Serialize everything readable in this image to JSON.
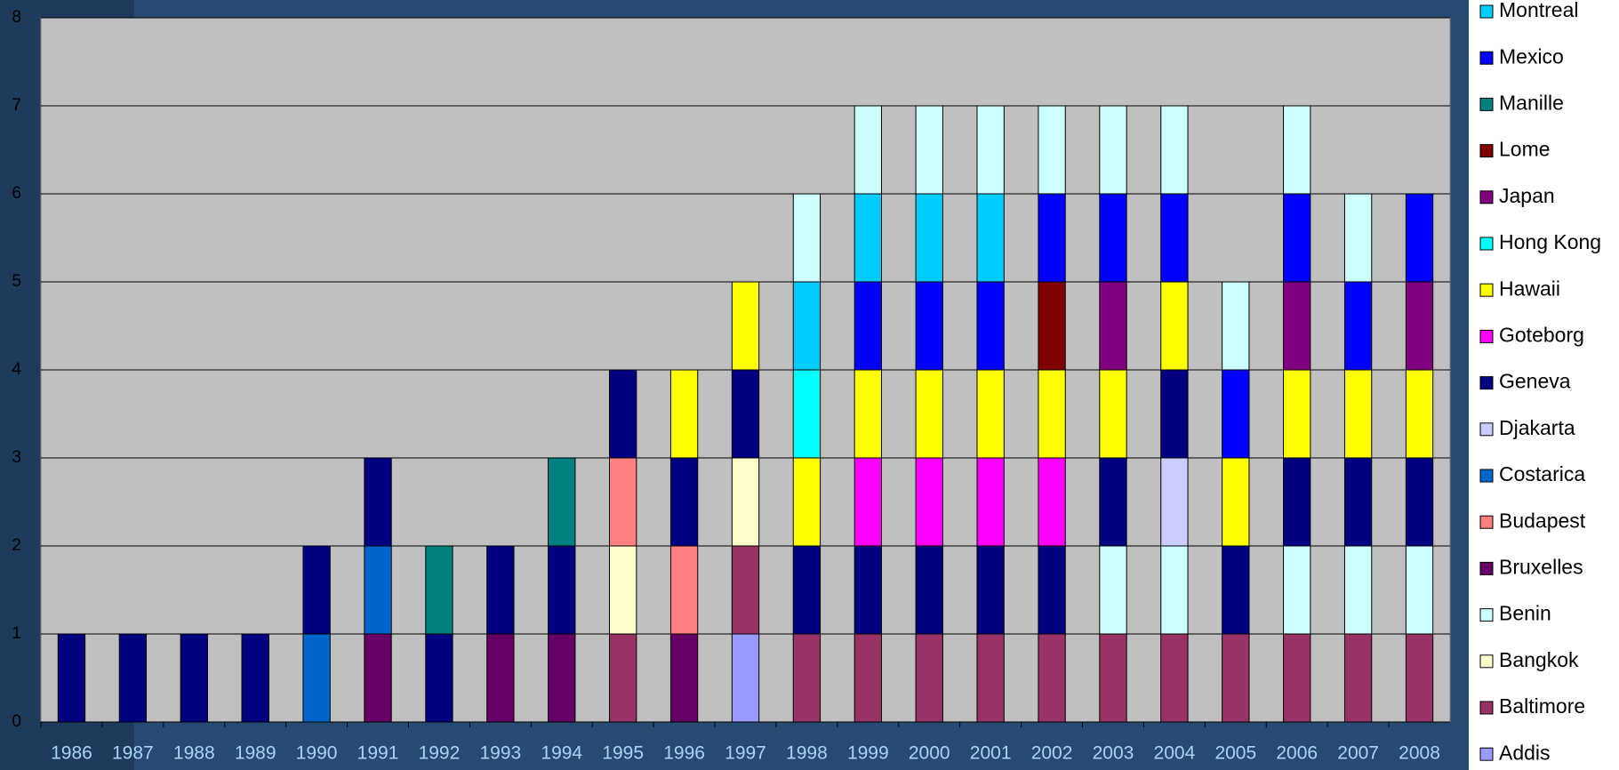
{
  "chart_data": {
    "type": "stacked_bar",
    "categories": [
      "1986",
      "1987",
      "1988",
      "1989",
      "1990",
      "1991",
      "1992",
      "1993",
      "1994",
      "1995",
      "1996",
      "1997",
      "1998",
      "1999",
      "2000",
      "2001",
      "2002",
      "2003",
      "2004",
      "2005",
      "2006",
      "2007",
      "2008"
    ],
    "series": [
      {
        "name": "Addis",
        "color": "#9999ff",
        "values": [
          0,
          0,
          0,
          0,
          0,
          0,
          0,
          0,
          0,
          0,
          0,
          1,
          0,
          0,
          0,
          0,
          0,
          0,
          0,
          0,
          0,
          0,
          0
        ]
      },
      {
        "name": "Baltimore",
        "color": "#993366",
        "values": [
          0,
          0,
          0,
          0,
          0,
          0,
          0,
          0,
          0,
          1,
          0,
          1,
          1,
          1,
          1,
          1,
          1,
          1,
          1,
          1,
          1,
          1,
          1
        ]
      },
      {
        "name": "Bangkok",
        "color": "#ffffcc",
        "values": [
          0,
          0,
          0,
          0,
          0,
          0,
          0,
          0,
          0,
          1,
          0,
          1,
          0,
          0,
          0,
          0,
          0,
          0,
          0,
          0,
          0,
          0,
          0
        ]
      },
      {
        "name": "Benin",
        "color": "#ccffff",
        "values": [
          0,
          0,
          0,
          0,
          0,
          0,
          0,
          0,
          0,
          0,
          0,
          0,
          0,
          0,
          0,
          0,
          0,
          1,
          1,
          0,
          1,
          1,
          1
        ]
      },
      {
        "name": "Bruxelles",
        "color": "#660066",
        "values": [
          0,
          0,
          0,
          0,
          0,
          1,
          0,
          1,
          1,
          0,
          1,
          0,
          0,
          0,
          0,
          0,
          0,
          0,
          0,
          0,
          0,
          0,
          0
        ]
      },
      {
        "name": "Budapest",
        "color": "#ff8080",
        "values": [
          0,
          0,
          0,
          0,
          0,
          0,
          0,
          0,
          0,
          1,
          1,
          0,
          0,
          0,
          0,
          0,
          0,
          0,
          0,
          0,
          0,
          0,
          0
        ]
      },
      {
        "name": "Costarica",
        "color": "#0066cc",
        "values": [
          0,
          0,
          0,
          0,
          1,
          1,
          0,
          0,
          0,
          0,
          0,
          0,
          0,
          0,
          0,
          0,
          0,
          0,
          0,
          0,
          0,
          0,
          0
        ]
      },
      {
        "name": "Djakarta",
        "color": "#ccccff",
        "values": [
          0,
          0,
          0,
          0,
          0,
          0,
          0,
          0,
          0,
          0,
          0,
          0,
          0,
          0,
          0,
          0,
          0,
          0,
          1,
          0,
          0,
          0,
          0
        ]
      },
      {
        "name": "Geneva",
        "color": "#000080",
        "values": [
          1,
          1,
          1,
          1,
          1,
          1,
          1,
          1,
          1,
          1,
          1,
          1,
          1,
          1,
          1,
          1,
          1,
          1,
          1,
          1,
          1,
          1,
          1
        ]
      },
      {
        "name": "Goteborg",
        "color": "#ff00ff",
        "values": [
          0,
          0,
          0,
          0,
          0,
          0,
          0,
          0,
          0,
          0,
          0,
          0,
          0,
          1,
          1,
          1,
          1,
          0,
          0,
          0,
          0,
          0,
          0
        ]
      },
      {
        "name": "Hawaii",
        "color": "#ffff00",
        "values": [
          0,
          0,
          0,
          0,
          0,
          0,
          0,
          0,
          0,
          0,
          1,
          1,
          1,
          1,
          1,
          1,
          1,
          1,
          1,
          1,
          1,
          1,
          1
        ]
      },
      {
        "name": "Hong Kong",
        "color": "#00ffff",
        "values": [
          0,
          0,
          0,
          0,
          0,
          0,
          0,
          0,
          0,
          0,
          0,
          0,
          1,
          0,
          0,
          0,
          0,
          0,
          0,
          0,
          0,
          0,
          0
        ]
      },
      {
        "name": "Japan",
        "color": "#800080",
        "values": [
          0,
          0,
          0,
          0,
          0,
          0,
          0,
          0,
          0,
          0,
          0,
          0,
          0,
          0,
          0,
          0,
          0,
          1,
          0,
          0,
          1,
          0,
          1
        ]
      },
      {
        "name": "Lome",
        "color": "#800000",
        "values": [
          0,
          0,
          0,
          0,
          0,
          0,
          0,
          0,
          0,
          0,
          0,
          0,
          0,
          0,
          0,
          0,
          1,
          0,
          0,
          0,
          0,
          0,
          0
        ]
      },
      {
        "name": "Manille",
        "color": "#008080",
        "values": [
          0,
          0,
          0,
          0,
          0,
          0,
          1,
          0,
          1,
          0,
          0,
          0,
          0,
          0,
          0,
          0,
          0,
          0,
          0,
          0,
          0,
          0,
          0
        ]
      },
      {
        "name": "Mexico",
        "color": "#0000ff",
        "values": [
          0,
          0,
          0,
          0,
          0,
          0,
          0,
          0,
          0,
          0,
          0,
          0,
          0,
          1,
          1,
          1,
          1,
          1,
          1,
          1,
          1,
          1,
          1
        ]
      },
      {
        "name": "Montreal",
        "color": "#00ccff",
        "values": [
          0,
          0,
          0,
          0,
          0,
          0,
          0,
          0,
          0,
          0,
          0,
          0,
          1,
          1,
          1,
          1,
          0,
          0,
          0,
          0,
          0,
          0,
          0
        ]
      },
      {
        "name": null,
        "color": "#ccffff",
        "values": [
          0,
          0,
          0,
          0,
          0,
          0,
          0,
          0,
          0,
          0,
          0,
          0,
          1,
          1,
          1,
          1,
          1,
          1,
          1,
          1,
          1,
          1,
          0
        ]
      }
    ],
    "ylim": [
      0,
      8
    ],
    "yticks": [
      0,
      1,
      2,
      3,
      4,
      5,
      6,
      7,
      8
    ],
    "grid": true
  }
}
